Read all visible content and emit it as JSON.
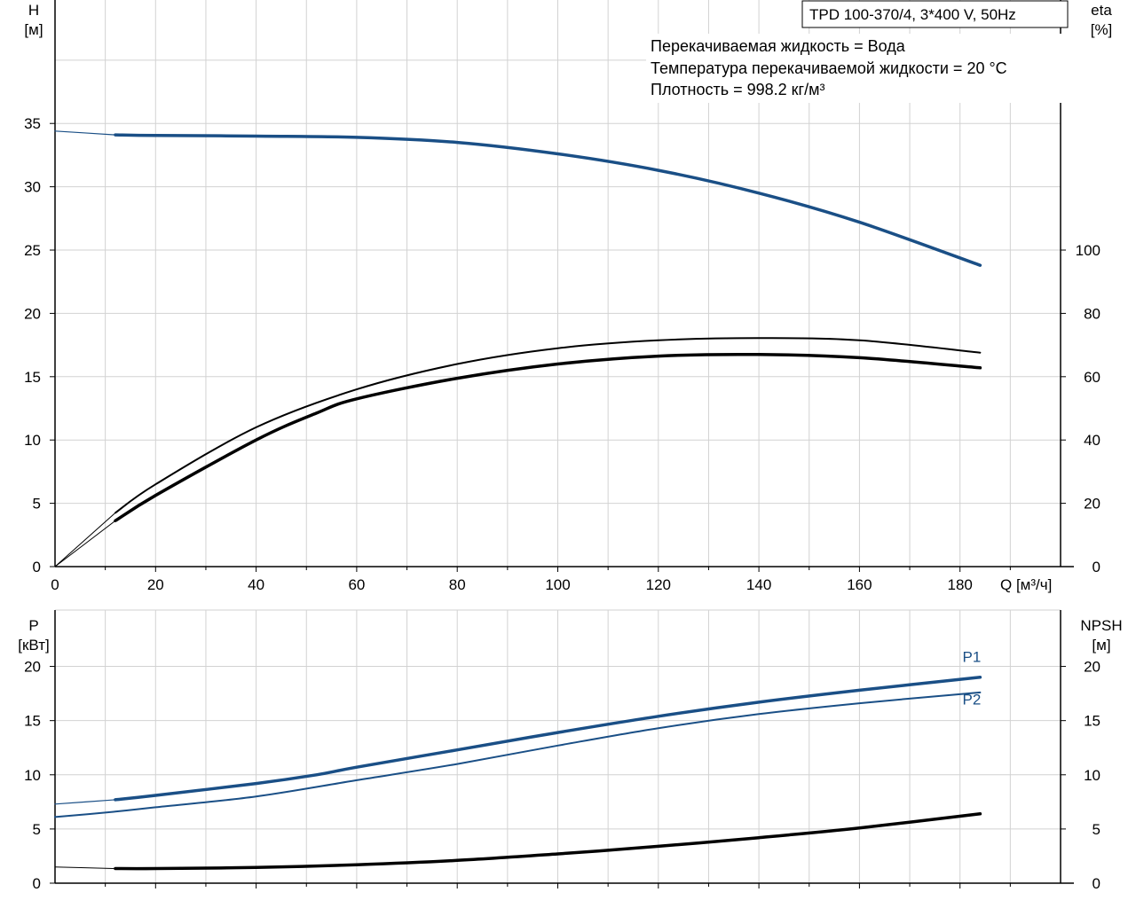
{
  "colors": {
    "blue": "#1a4f86",
    "black": "#000000",
    "grid": "#d2d2d2"
  },
  "info_box": {
    "title": "TPD 100-370/4, 3*400 V, 50Hz"
  },
  "annotations": [
    "Перекачиваемая жидкость = Вода",
    "Температура перекачиваемой жидкости = 20 °C",
    "Плотность = 998.2 кг/м³"
  ],
  "chart_data": [
    {
      "type": "line",
      "panel": "top",
      "xlabel": "Q [м³/ч]",
      "x_ticks": [
        0,
        20,
        40,
        60,
        80,
        100,
        120,
        140,
        160,
        180
      ],
      "xlim": [
        0,
        200
      ],
      "left_axis": {
        "label_line1": "H",
        "label_line2": "[м]",
        "ticks": [
          0,
          5,
          10,
          15,
          20,
          25,
          30,
          35
        ],
        "lim": [
          0,
          44.75
        ]
      },
      "right_axis": {
        "label_line1": "eta",
        "label_line2": "[%]",
        "ticks": [
          0,
          20,
          40,
          60,
          80,
          100
        ],
        "lim": [
          0,
          179
        ]
      },
      "grid": true,
      "series": [
        {
          "axis": "left",
          "color": "#1a4f86",
          "width": 3.5,
          "x": [
            12,
            20,
            40,
            60,
            80,
            100,
            120,
            140,
            160,
            184
          ],
          "y": [
            34.1,
            34.05,
            34.0,
            33.9,
            33.5,
            32.6,
            31.3,
            29.5,
            27.2,
            23.8
          ]
        },
        {
          "axis": "left",
          "color": "#1a4f86",
          "width": 1.2,
          "x": [
            0,
            12
          ],
          "y": [
            34.4,
            34.1
          ]
        },
        {
          "axis": "right",
          "color": "#000000",
          "width": 2,
          "x": [
            12,
            20,
            40,
            60,
            80,
            100,
            120,
            140,
            160,
            184
          ],
          "y": [
            17,
            26,
            44,
            56,
            64,
            69,
            71.5,
            72.2,
            71.5,
            67.6
          ]
        },
        {
          "axis": "right",
          "color": "#000000",
          "width": 1,
          "x": [
            0,
            12
          ],
          "y": [
            0,
            17
          ]
        },
        {
          "axis": "right",
          "color": "#000000",
          "width": 3.5,
          "x": [
            12,
            20,
            40,
            52,
            60,
            80,
            100,
            120,
            140,
            160,
            184
          ],
          "y": [
            14.5,
            22.5,
            40,
            48.5,
            53,
            59.5,
            64,
            66.5,
            67,
            66,
            62.8
          ]
        },
        {
          "axis": "right",
          "color": "#000000",
          "width": 1,
          "x": [
            0,
            12
          ],
          "y": [
            0,
            14.5
          ]
        }
      ]
    },
    {
      "type": "line",
      "panel": "bottom",
      "x_ticks": [
        0,
        20,
        40,
        60,
        80,
        100,
        120,
        140,
        160,
        180
      ],
      "xlim": [
        0,
        200
      ],
      "left_axis": {
        "label_line1": "P",
        "label_line2": "[кВт]",
        "ticks": [
          0,
          5,
          10,
          15,
          20
        ],
        "lim": [
          0,
          25.2
        ]
      },
      "right_axis": {
        "label_line1": "NPSH",
        "label_line2": "[м]",
        "ticks": [
          0,
          5,
          10,
          15,
          20
        ],
        "lim": [
          0,
          25.2
        ]
      },
      "grid": true,
      "series": [
        {
          "name": "P1",
          "axis": "left",
          "color": "#1a4f86",
          "width": 3.5,
          "x": [
            12,
            20,
            40,
            52,
            60,
            80,
            100,
            120,
            140,
            160,
            184
          ],
          "y": [
            7.7,
            8.1,
            9.2,
            10.0,
            10.7,
            12.3,
            13.9,
            15.4,
            16.7,
            17.8,
            19.0
          ]
        },
        {
          "axis": "left",
          "color": "#1a4f86",
          "width": 1.2,
          "x": [
            0,
            12
          ],
          "y": [
            7.3,
            7.7
          ]
        },
        {
          "name": "P2",
          "axis": "left",
          "color": "#1a4f86",
          "width": 2,
          "x": [
            0,
            12,
            20,
            40,
            60,
            80,
            100,
            120,
            140,
            160,
            184
          ],
          "y": [
            6.1,
            6.6,
            7.0,
            8.0,
            9.5,
            11.0,
            12.7,
            14.3,
            15.6,
            16.6,
            17.6
          ]
        },
        {
          "axis": "right",
          "color": "#000000",
          "width": 3.5,
          "x": [
            12,
            20,
            40,
            60,
            80,
            100,
            120,
            140,
            160,
            184
          ],
          "y": [
            1.35,
            1.35,
            1.45,
            1.7,
            2.1,
            2.7,
            3.4,
            4.2,
            5.1,
            6.4
          ]
        },
        {
          "axis": "right",
          "color": "#000000",
          "width": 1,
          "x": [
            0,
            12
          ],
          "y": [
            1.5,
            1.35
          ]
        }
      ],
      "series_labels": [
        {
          "text": "P1",
          "x": 180.5,
          "y": 20.4
        },
        {
          "text": "P2",
          "x": 180.5,
          "y": 16.5
        }
      ]
    }
  ]
}
